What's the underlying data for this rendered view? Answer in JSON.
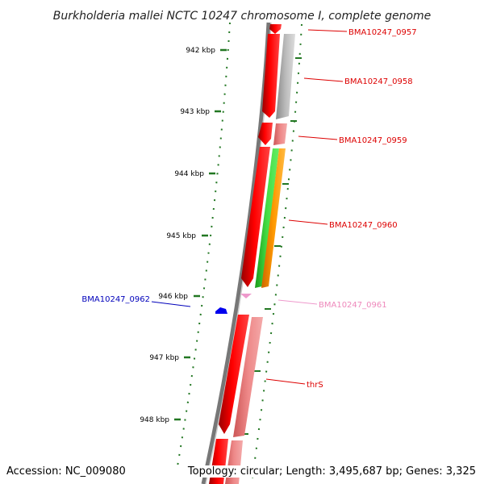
{
  "title": "Burkholderia mallei NCTC 10247 chromosome I, complete genome",
  "accession": "Accession: NC_009080",
  "summary": "Topology: circular; Length: 3,495,687 bp; Genes: 3,325",
  "colors": {
    "forward_strand": "#ff0000",
    "forward_gene_light": "#ee8888",
    "other_feature": "#bbbbbb",
    "green_feature": "#33cc33",
    "orange_feature": "#ff9900",
    "reverse_strand": "#0000ee",
    "pale_pink": "#ee99cc",
    "tick_color": "#227722",
    "backbone": "#777777"
  },
  "ruler": {
    "unit": "kbp",
    "ticks": [
      {
        "label": "942 kbp"
      },
      {
        "label": "943 kbp"
      },
      {
        "label": "944 kbp"
      },
      {
        "label": "945 kbp"
      },
      {
        "label": "946 kbp"
      },
      {
        "label": "947 kbp"
      },
      {
        "label": "948 kbp"
      }
    ]
  },
  "genes": [
    {
      "name": "BMA10247_0957",
      "color": "#dd0000"
    },
    {
      "name": "BMA10247_0958",
      "color": "#dd0000"
    },
    {
      "name": "BMA10247_0959",
      "color": "#dd0000"
    },
    {
      "name": "BMA10247_0960",
      "color": "#dd0000"
    },
    {
      "name": "BMA10247_0961",
      "color": "#ee88bb"
    },
    {
      "name": "BMA10247_0962",
      "color": "#0000bb"
    },
    {
      "name": "thrS",
      "color": "#dd0000"
    }
  ]
}
